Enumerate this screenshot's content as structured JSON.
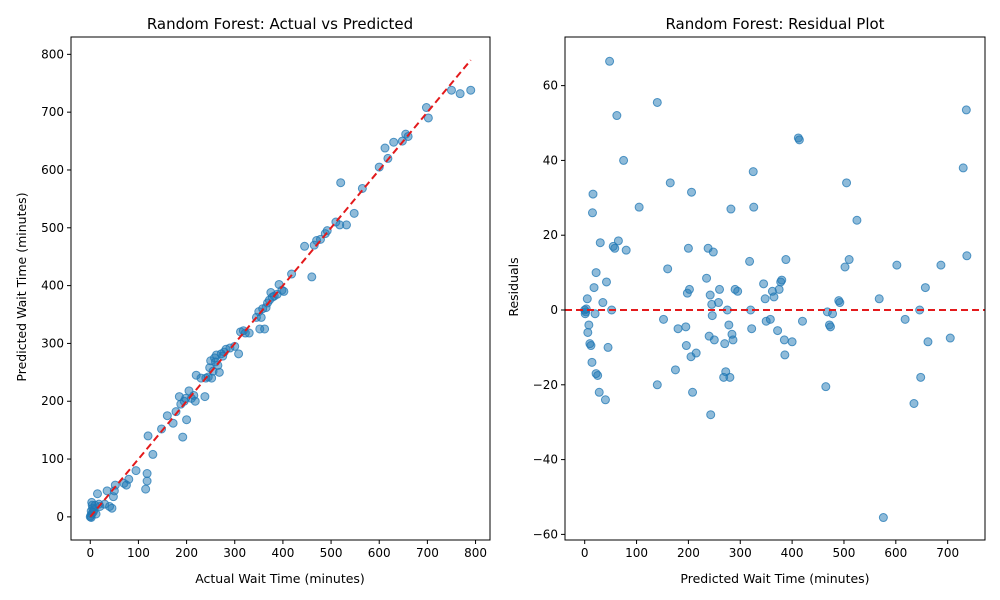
{
  "chart_data": [
    {
      "type": "scatter",
      "title": "Random Forest: Actual vs Predicted",
      "xlabel": "Actual Wait Time (minutes)",
      "ylabel": "Predicted Wait Time (minutes)",
      "xlim": [
        -40,
        830
      ],
      "ylim": [
        -40,
        830
      ],
      "xticks": [
        0,
        100,
        200,
        300,
        400,
        500,
        600,
        700,
        800
      ],
      "yticks": [
        0,
        100,
        200,
        300,
        400,
        500,
        600,
        700,
        800
      ],
      "grid": false,
      "colors": {
        "points": "#1f77b4",
        "reference_line": "#e31a1c"
      },
      "reference_line": {
        "style": "dashed",
        "from": [
          0,
          0
        ],
        "to": [
          790,
          790
        ]
      },
      "points": [
        [
          0,
          0
        ],
        [
          1,
          2
        ],
        [
          2,
          -1
        ],
        [
          3,
          5
        ],
        [
          2,
          10
        ],
        [
          4,
          20
        ],
        [
          5,
          15
        ],
        [
          3,
          25
        ],
        [
          6,
          8
        ],
        [
          8,
          12
        ],
        [
          10,
          20
        ],
        [
          12,
          5
        ],
        [
          15,
          40
        ],
        [
          18,
          22
        ],
        [
          20,
          18
        ],
        [
          30,
          22
        ],
        [
          35,
          45
        ],
        [
          40,
          18
        ],
        [
          45,
          15
        ],
        [
          48,
          35
        ],
        [
          50,
          45
        ],
        [
          52,
          55
        ],
        [
          70,
          58
        ],
        [
          75,
          55
        ],
        [
          80,
          65
        ],
        [
          95,
          80
        ],
        [
          115,
          48
        ],
        [
          118,
          75
        ],
        [
          118,
          62
        ],
        [
          120,
          140
        ],
        [
          130,
          108
        ],
        [
          148,
          152
        ],
        [
          160,
          175
        ],
        [
          172,
          162
        ],
        [
          178,
          182
        ],
        [
          185,
          208
        ],
        [
          188,
          195
        ],
        [
          192,
          138
        ],
        [
          195,
          200
        ],
        [
          198,
          205
        ],
        [
          200,
          168
        ],
        [
          205,
          218
        ],
        [
          210,
          205
        ],
        [
          215,
          210
        ],
        [
          218,
          200
        ],
        [
          220,
          245
        ],
        [
          230,
          240
        ],
        [
          238,
          208
        ],
        [
          240,
          240
        ],
        [
          245,
          242
        ],
        [
          248,
          258
        ],
        [
          250,
          270
        ],
        [
          252,
          240
        ],
        [
          255,
          252
        ],
        [
          258,
          275
        ],
        [
          260,
          268
        ],
        [
          262,
          280
        ],
        [
          265,
          262
        ],
        [
          268,
          250
        ],
        [
          272,
          282
        ],
        [
          275,
          278
        ],
        [
          278,
          285
        ],
        [
          282,
          290
        ],
        [
          290,
          292
        ],
        [
          300,
          295
        ],
        [
          308,
          282
        ],
        [
          312,
          320
        ],
        [
          318,
          322
        ],
        [
          322,
          318
        ],
        [
          330,
          318
        ],
        [
          345,
          345
        ],
        [
          350,
          355
        ],
        [
          352,
          325
        ],
        [
          355,
          345
        ],
        [
          358,
          360
        ],
        [
          362,
          325
        ],
        [
          365,
          362
        ],
        [
          368,
          370
        ],
        [
          372,
          375
        ],
        [
          375,
          388
        ],
        [
          378,
          380
        ],
        [
          382,
          382
        ],
        [
          388,
          385
        ],
        [
          392,
          402
        ],
        [
          398,
          392
        ],
        [
          402,
          390
        ],
        [
          418,
          420
        ],
        [
          445,
          468
        ],
        [
          460,
          415
        ],
        [
          465,
          470
        ],
        [
          470,
          478
        ],
        [
          478,
          480
        ],
        [
          488,
          490
        ],
        [
          492,
          495
        ],
        [
          510,
          510
        ],
        [
          518,
          505
        ],
        [
          520,
          578
        ],
        [
          532,
          505
        ],
        [
          548,
          525
        ],
        [
          565,
          568
        ],
        [
          600,
          605
        ],
        [
          612,
          638
        ],
        [
          618,
          620
        ],
        [
          630,
          648
        ],
        [
          648,
          650
        ],
        [
          655,
          662
        ],
        [
          660,
          658
        ],
        [
          698,
          708
        ],
        [
          702,
          690
        ],
        [
          750,
          738
        ],
        [
          768,
          732
        ],
        [
          790,
          738
        ]
      ]
    },
    {
      "type": "scatter",
      "title": "Random Forest: Residual Plot",
      "xlabel": "Predicted Wait Time (minutes)",
      "ylabel": "Residuals",
      "xlim": [
        -38,
        772
      ],
      "ylim": [
        -61.5,
        73
      ],
      "xticks": [
        0,
        100,
        200,
        300,
        400,
        500,
        600,
        700
      ],
      "yticks": [
        -60,
        -40,
        -20,
        0,
        20,
        40,
        60
      ],
      "grid": false,
      "colors": {
        "points": "#1f77b4",
        "reference_line": "#e31a1c"
      },
      "reference_line": {
        "style": "dashed",
        "y": 0
      },
      "points": [
        [
          0,
          0
        ],
        [
          2,
          -0.5
        ],
        [
          3,
          0.3
        ],
        [
          1,
          -1
        ],
        [
          5,
          3
        ],
        [
          6,
          -6
        ],
        [
          8,
          -4
        ],
        [
          10,
          -9
        ],
        [
          12,
          -9.5
        ],
        [
          14,
          -14
        ],
        [
          15,
          26
        ],
        [
          16,
          31
        ],
        [
          18,
          6
        ],
        [
          20,
          -1
        ],
        [
          22,
          10
        ],
        [
          22,
          -17
        ],
        [
          25,
          -17.5
        ],
        [
          28,
          -22
        ],
        [
          30,
          18
        ],
        [
          35,
          2
        ],
        [
          40,
          -24
        ],
        [
          42,
          7.5
        ],
        [
          45,
          -10
        ],
        [
          48,
          66.5
        ],
        [
          52,
          0
        ],
        [
          55,
          17
        ],
        [
          58,
          16.5
        ],
        [
          62,
          52
        ],
        [
          65,
          18.5
        ],
        [
          75,
          40
        ],
        [
          80,
          16
        ],
        [
          105,
          27.5
        ],
        [
          140,
          55.5
        ],
        [
          140,
          -20
        ],
        [
          152,
          -2.5
        ],
        [
          160,
          11
        ],
        [
          165,
          34
        ],
        [
          175,
          -16
        ],
        [
          180,
          -5
        ],
        [
          195,
          -4.5
        ],
        [
          196,
          -9.5
        ],
        [
          198,
          4.5
        ],
        [
          200,
          16.5
        ],
        [
          202,
          5.5
        ],
        [
          205,
          -12.5
        ],
        [
          206,
          31.5
        ],
        [
          208,
          -22
        ],
        [
          215,
          -11.5
        ],
        [
          235,
          8.5
        ],
        [
          238,
          16.5
        ],
        [
          240,
          -7
        ],
        [
          242,
          4
        ],
        [
          243,
          -28
        ],
        [
          245,
          1.5
        ],
        [
          246,
          -1.5
        ],
        [
          248,
          15.5
        ],
        [
          250,
          -8
        ],
        [
          258,
          2
        ],
        [
          260,
          5.5
        ],
        [
          268,
          -18
        ],
        [
          270,
          -9
        ],
        [
          272,
          -16.5
        ],
        [
          275,
          0
        ],
        [
          278,
          -4
        ],
        [
          280,
          -18
        ],
        [
          282,
          27
        ],
        [
          284,
          -6.5
        ],
        [
          286,
          -8
        ],
        [
          290,
          5.5
        ],
        [
          295,
          5
        ],
        [
          318,
          13
        ],
        [
          320,
          0
        ],
        [
          322,
          -5
        ],
        [
          325,
          37
        ],
        [
          326,
          27.5
        ],
        [
          345,
          7
        ],
        [
          348,
          3
        ],
        [
          350,
          -3
        ],
        [
          358,
          -2.5
        ],
        [
          362,
          5
        ],
        [
          365,
          3.5
        ],
        [
          372,
          -5.5
        ],
        [
          375,
          5.5
        ],
        [
          378,
          7.5
        ],
        [
          380,
          8
        ],
        [
          385,
          -8
        ],
        [
          386,
          -12
        ],
        [
          388,
          13.5
        ],
        [
          400,
          -8.5
        ],
        [
          412,
          46
        ],
        [
          414,
          45.5
        ],
        [
          420,
          -3
        ],
        [
          465,
          -20.5
        ],
        [
          468,
          -0.5
        ],
        [
          472,
          -4
        ],
        [
          474,
          -4.5
        ],
        [
          478,
          -1
        ],
        [
          490,
          2.5
        ],
        [
          492,
          2
        ],
        [
          502,
          11.5
        ],
        [
          505,
          34
        ],
        [
          510,
          13.5
        ],
        [
          525,
          24
        ],
        [
          576,
          -55.5
        ],
        [
          568,
          3
        ],
        [
          602,
          12
        ],
        [
          618,
          -2.5
        ],
        [
          635,
          -25
        ],
        [
          646,
          0
        ],
        [
          648,
          -18
        ],
        [
          657,
          6
        ],
        [
          662,
          -8.5
        ],
        [
          687,
          12
        ],
        [
          705,
          -7.5
        ],
        [
          730,
          38
        ],
        [
          736,
          53.5
        ],
        [
          737,
          14.5
        ]
      ]
    }
  ]
}
